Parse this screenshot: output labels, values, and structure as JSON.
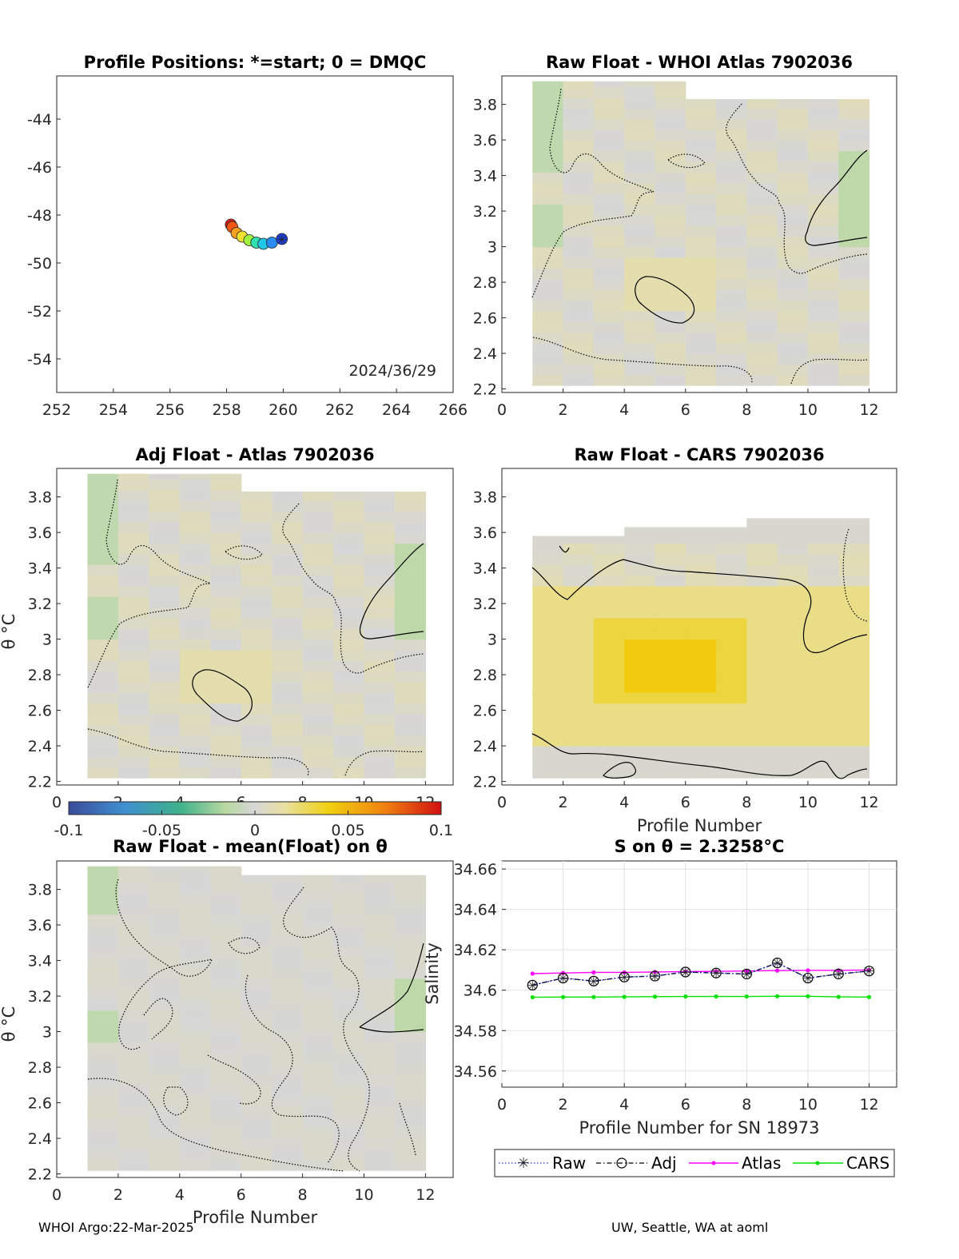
{
  "footer": {
    "left": "WHOI Argo:22-Mar-2025",
    "right": "UW, Seattle, WA at aoml"
  },
  "colors": {
    "raw": "#1f2fd8",
    "adj": "#000000",
    "atlas": "#ff00ff",
    "cars": "#00e000",
    "grey_bg": "#d6d6d6"
  },
  "colorbar": {
    "ticks": [
      "-0.1",
      "-0.05",
      "0",
      "0.05",
      "0.1"
    ],
    "range": [
      -0.1,
      0.1
    ],
    "colormap": "blue-green-grey-yellow-red"
  },
  "chart_data": [
    {
      "id": "positions",
      "type": "scatter",
      "title": "Profile Positions: *=start; 0 = DMQC",
      "xlabel": "",
      "ylabel": "",
      "xlim": [
        252,
        266
      ],
      "ylim": [
        -55.4,
        -42.2
      ],
      "xticks": [
        "252",
        "254",
        "256",
        "258",
        "260",
        "262",
        "264",
        "266"
      ],
      "yticks": [
        "-44",
        "-46",
        "-48",
        "-50",
        "-52",
        "-54"
      ],
      "annotation": "2024/36/29",
      "points": [
        {
          "lon": 259.95,
          "lat": -49.0
        },
        {
          "lon": 259.6,
          "lat": -49.15
        },
        {
          "lon": 259.3,
          "lat": -49.2
        },
        {
          "lon": 259.05,
          "lat": -49.15
        },
        {
          "lon": 258.8,
          "lat": -49.05
        },
        {
          "lon": 258.55,
          "lat": -48.9
        },
        {
          "lon": 258.35,
          "lat": -48.75
        },
        {
          "lon": 258.2,
          "lat": -48.5
        },
        {
          "lon": 258.15,
          "lat": -48.4
        }
      ],
      "marker_colors": [
        "#1f3fd8",
        "#2a8cf0",
        "#20c8e8",
        "#30e0b0",
        "#a0f040",
        "#f0e030",
        "#f8a020",
        "#f05818",
        "#d81e14"
      ]
    },
    {
      "id": "whoi-atlas",
      "type": "heatmap",
      "title": "Raw Float - WHOI Atlas  7902036",
      "xlim": [
        0,
        12.9
      ],
      "ylim": [
        2.18,
        3.96
      ],
      "xticks": [
        "0",
        "2",
        "4",
        "6",
        "8",
        "10",
        "12"
      ],
      "yticks": [
        "2.2",
        "2.4",
        "2.6",
        "2.8",
        "3",
        "3.2",
        "3.4",
        "3.6",
        "3.8"
      ],
      "ylabel": "",
      "xlabel": "",
      "field": "atlas"
    },
    {
      "id": "adj-atlas",
      "type": "heatmap",
      "title": "Adj Float - Atlas  7902036",
      "xlim": [
        0,
        12.9
      ],
      "ylim": [
        2.18,
        3.96
      ],
      "xticks": [
        "0",
        "2",
        "4",
        "6",
        "8",
        "10",
        "12"
      ],
      "yticks": [
        "2.2",
        "2.4",
        "2.6",
        "2.8",
        "3",
        "3.2",
        "3.4",
        "3.6",
        "3.8"
      ],
      "ylabel": "θ °C",
      "xlabel": "",
      "field": "atlas"
    },
    {
      "id": "cars",
      "type": "heatmap",
      "title": "Raw Float - CARS  7902036",
      "xlim": [
        0,
        12.9
      ],
      "ylim": [
        2.18,
        3.96
      ],
      "xticks": [
        "0",
        "2",
        "4",
        "6",
        "8",
        "10",
        "12"
      ],
      "yticks": [
        "2.2",
        "2.4",
        "2.6",
        "2.8",
        "3",
        "3.2",
        "3.4",
        "3.6",
        "3.8"
      ],
      "ylabel": "",
      "xlabel": "Profile Number",
      "field": "cars"
    },
    {
      "id": "mean-float",
      "type": "heatmap",
      "title": "Raw Float - mean(Float) on θ",
      "xlim": [
        0,
        12.9
      ],
      "ylim": [
        2.18,
        3.96
      ],
      "xticks": [
        "0",
        "2",
        "4",
        "6",
        "8",
        "10",
        "12"
      ],
      "yticks": [
        "2.2",
        "2.4",
        "2.6",
        "2.8",
        "3",
        "3.2",
        "3.4",
        "3.6",
        "3.8"
      ],
      "ylabel": "θ °C",
      "xlabel": "Profile Number",
      "field": "mean"
    },
    {
      "id": "salinity",
      "type": "line",
      "title": "S on θ = 2.3258°C",
      "xlabel": "Profile Number for SN 18973",
      "ylabel": "Salinity",
      "xlim": [
        0,
        12.9
      ],
      "ylim": [
        34.552,
        34.664
      ],
      "grid": true,
      "legend_position": "bottom",
      "xticks": [
        "0",
        "2",
        "4",
        "6",
        "8",
        "10",
        "12"
      ],
      "yticks": [
        "34.56",
        "34.58",
        "34.6",
        "34.62",
        "34.64",
        "34.66"
      ],
      "x": [
        1,
        2,
        3,
        4,
        5,
        6,
        7,
        8,
        9,
        10,
        11,
        12
      ],
      "series": [
        {
          "name": "Raw",
          "values": [
            34.6025,
            34.606,
            34.6045,
            34.6065,
            34.607,
            34.609,
            34.6085,
            34.608,
            34.6135,
            34.606,
            34.608,
            34.6095
          ]
        },
        {
          "name": "Adj",
          "values": [
            34.6025,
            34.606,
            34.6045,
            34.6065,
            34.607,
            34.609,
            34.6085,
            34.608,
            34.6135,
            34.606,
            34.608,
            34.6095
          ]
        },
        {
          "name": "Atlas",
          "values": [
            34.6082,
            34.6085,
            34.6088,
            34.6088,
            34.609,
            34.6092,
            34.6093,
            34.6095,
            34.6097,
            34.6098,
            34.6098,
            34.61
          ]
        },
        {
          "name": "CARS",
          "values": [
            34.5965,
            34.5966,
            34.5966,
            34.5967,
            34.5968,
            34.5969,
            34.5969,
            34.5969,
            34.597,
            34.597,
            34.5967,
            34.5966
          ]
        }
      ]
    }
  ]
}
